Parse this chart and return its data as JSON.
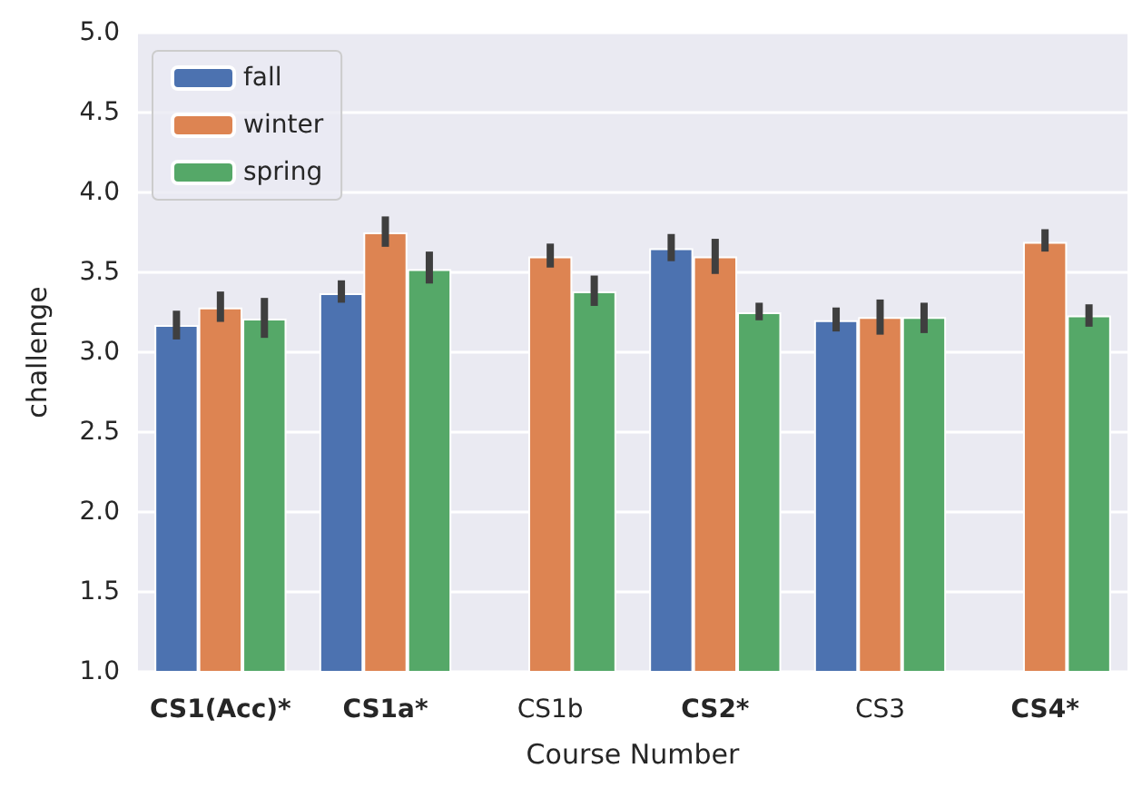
{
  "chart_data": {
    "type": "bar",
    "xlabel": "Course Number",
    "ylabel": "challenge",
    "categories": [
      "CS1(Acc)*",
      "CS1a*",
      "CS1b",
      "CS2*",
      "CS3",
      "CS4*"
    ],
    "series": [
      {
        "name": "fall",
        "color": "#4c72b0",
        "values": [
          3.17,
          3.37,
          null,
          3.65,
          3.2,
          null
        ],
        "errors": [
          [
            3.08,
            3.26
          ],
          [
            3.31,
            3.45
          ],
          null,
          [
            3.57,
            3.74
          ],
          [
            3.13,
            3.28
          ],
          null
        ]
      },
      {
        "name": "winter",
        "color": "#dd8452",
        "values": [
          3.28,
          3.75,
          3.6,
          3.6,
          3.22,
          3.69
        ],
        "errors": [
          [
            3.19,
            3.38
          ],
          [
            3.66,
            3.85
          ],
          [
            3.53,
            3.68
          ],
          [
            3.49,
            3.71
          ],
          [
            3.11,
            3.33
          ],
          [
            3.63,
            3.77
          ]
        ]
      },
      {
        "name": "spring",
        "color": "#55a868",
        "values": [
          3.21,
          3.52,
          3.38,
          3.25,
          3.22,
          3.23
        ],
        "errors": [
          [
            3.09,
            3.34
          ],
          [
            3.43,
            3.63
          ],
          [
            3.29,
            3.48
          ],
          [
            3.2,
            3.31
          ],
          [
            3.12,
            3.31
          ],
          [
            3.16,
            3.3
          ]
        ]
      }
    ],
    "ylim": [
      1.0,
      5.0
    ],
    "yticks": [
      {
        "value": 1,
        "label": "1.0"
      },
      {
        "value": 1.5,
        "label": "1.5"
      },
      {
        "value": 2,
        "label": "2.0"
      },
      {
        "value": 2.5,
        "label": "2.5"
      },
      {
        "value": 3,
        "label": "3.0"
      },
      {
        "value": 3.5,
        "label": "3.5"
      },
      {
        "value": 4,
        "label": "4.0"
      },
      {
        "value": 4.5,
        "label": "4.5"
      },
      {
        "value": 5,
        "label": "5.0"
      }
    ],
    "grid": "y",
    "legend": "top left"
  }
}
